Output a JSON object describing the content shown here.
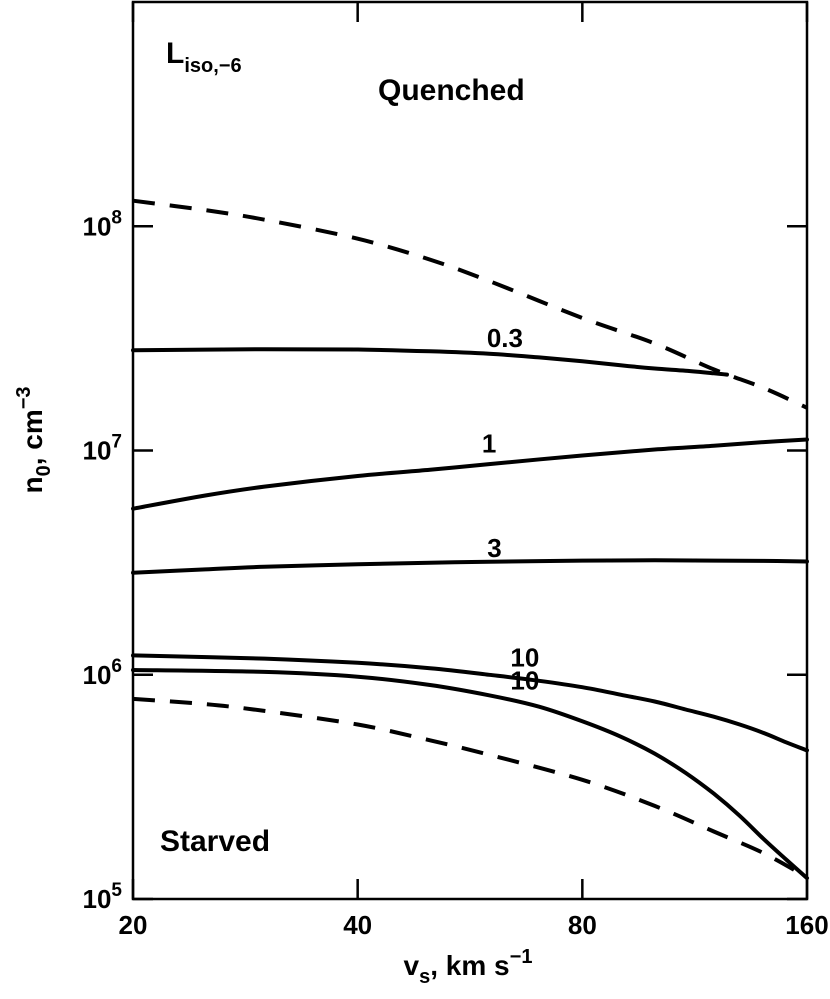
{
  "chart_data": {
    "type": "line",
    "xlabel": "v",
    "xlabel_sub": "s",
    "xlabel_rest": ", km s",
    "xlabel_sup": "−1",
    "ylabel": "n",
    "ylabel_sub": "0",
    "ylabel_rest": ", cm",
    "ylabel_sup": "−3",
    "x_scale": "log",
    "y_scale": "log",
    "xlim": [
      20,
      160
    ],
    "ylim": [
      100000,
      1000000000
    ],
    "x_ticks": [
      {
        "value": 20,
        "label": "20"
      },
      {
        "value": 40,
        "label": "40"
      },
      {
        "value": 80,
        "label": "80"
      },
      {
        "value": 160,
        "label": "160"
      }
    ],
    "y_ticks": [
      {
        "value": 100000,
        "base": "10",
        "exp": "5"
      },
      {
        "value": 1000000,
        "base": "10",
        "exp": "6"
      },
      {
        "value": 10000000,
        "base": "10",
        "exp": "7"
      },
      {
        "value": 100000000,
        "base": "10",
        "exp": "8"
      }
    ],
    "annotations": {
      "corner_main": "L",
      "corner_sub": "iso,−6",
      "top_region": "Quenched",
      "bottom_region": "Starved"
    },
    "series": [
      {
        "label": "",
        "style": "dashed",
        "x": [
          20,
          25,
          30,
          40,
          50,
          60,
          80,
          100,
          120,
          140,
          160
        ],
        "y": [
          130000000,
          118000000,
          107000000,
          88000000,
          71000000,
          57000000,
          39000000,
          30000000,
          23000000,
          19000000,
          15500000
        ]
      },
      {
        "label": "0.3",
        "style": "solid",
        "label_at": [
          63,
          29000000
        ],
        "x": [
          20,
          30,
          40,
          50,
          60,
          70,
          80,
          90,
          100,
          110,
          120,
          125
        ],
        "y": [
          28000000,
          28300000,
          28200000,
          27700000,
          27000000,
          26000000,
          25000000,
          24000000,
          23200000,
          22700000,
          22100000,
          21800000
        ]
      },
      {
        "label": "1",
        "style": "solid",
        "label_at": [
          60,
          9800000
        ],
        "x": [
          20,
          25,
          30,
          40,
          50,
          60,
          80,
          100,
          120,
          140,
          160
        ],
        "y": [
          5500000,
          6300000,
          6900000,
          7700000,
          8200000,
          8700000,
          9500000,
          10100000,
          10500000,
          10900000,
          11200000
        ]
      },
      {
        "label": "3",
        "style": "solid",
        "label_at": [
          61,
          3350000
        ],
        "x": [
          20,
          25,
          30,
          40,
          50,
          60,
          80,
          100,
          120,
          140,
          160
        ],
        "y": [
          2850000,
          2950000,
          3030000,
          3110000,
          3160000,
          3190000,
          3230000,
          3240000,
          3230000,
          3220000,
          3200000
        ]
      },
      {
        "label": "10",
        "style": "solid",
        "label_at": [
          67,
          1090000
        ],
        "x": [
          20,
          30,
          40,
          50,
          60,
          70,
          80,
          90,
          100,
          110,
          120,
          130,
          140,
          150,
          160
        ],
        "y": [
          1220000,
          1180000,
          1130000,
          1070000,
          1000000,
          940000,
          880000,
          815000,
          760000,
          700000,
          650000,
          600000,
          550000,
          500000,
          460000
        ]
      },
      {
        "label": "10",
        "style": "solid",
        "label_at": [
          67,
          860000
        ],
        "x": [
          20,
          30,
          40,
          50,
          60,
          70,
          80,
          90,
          100,
          110,
          120,
          130,
          140,
          150,
          160
        ],
        "y": [
          1050000,
          1030000,
          980000,
          900000,
          810000,
          720000,
          620000,
          530000,
          445000,
          365000,
          295000,
          235000,
          185000,
          150000,
          124000
        ]
      },
      {
        "label": "",
        "style": "dashed",
        "x": [
          20,
          25,
          30,
          40,
          50,
          60,
          80,
          100,
          120,
          140,
          160
        ],
        "y": [
          780000,
          740000,
          690000,
          600000,
          510000,
          440000,
          340000,
          260000,
          200000,
          160000,
          125000
        ]
      }
    ]
  }
}
